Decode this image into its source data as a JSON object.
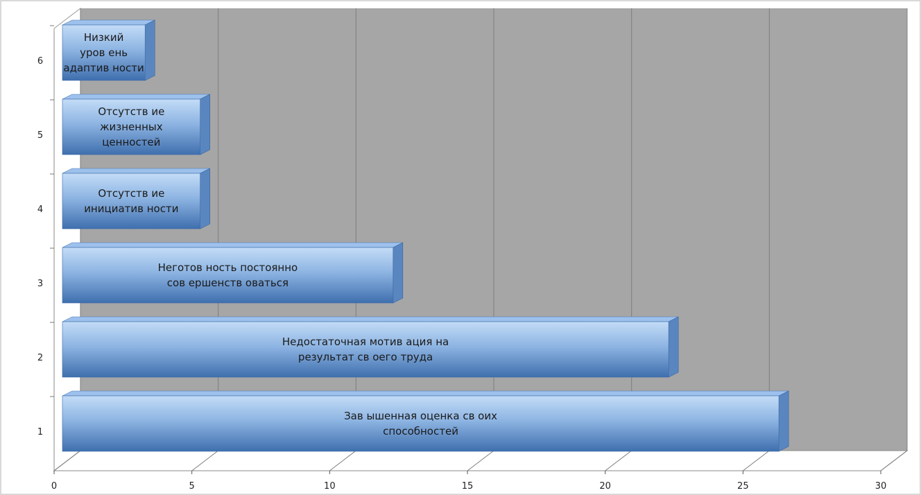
{
  "chart_data": {
    "type": "bar",
    "orientation": "horizontal",
    "style": "3d",
    "categories": [
      "1",
      "2",
      "3",
      "4",
      "5",
      "6"
    ],
    "values": [
      26,
      22,
      12,
      5,
      5,
      3
    ],
    "bar_labels": [
      [
        "Зав ышенная оценка св оих",
        "способностей"
      ],
      [
        "Недостаточная мотив ация на",
        "результат св оего труда"
      ],
      [
        "Неготов ность постоянно",
        "сов ершенств оваться"
      ],
      [
        "Отсутств ие",
        "инициатив ности"
      ],
      [
        "Отсутств ие",
        "жизненных",
        "ценностей"
      ],
      [
        "Низкий",
        "уров ень",
        "адаптив ности"
      ]
    ],
    "x_ticks": [
      "0",
      "5",
      "10",
      "15",
      "20",
      "25",
      "30"
    ],
    "xlim": [
      0,
      30
    ],
    "grid": true,
    "legend": "none",
    "colors": {
      "bar_top": "#c3dcf7",
      "bar_mid": "#8db4e2",
      "bar_bottom": "#3f6fae",
      "bar_side": "#5a86c0",
      "bar_cap": "#9dc1ec",
      "wall": "#a6a6a6",
      "floor": "#ffffff",
      "grid": "#7d7d7d"
    }
  }
}
